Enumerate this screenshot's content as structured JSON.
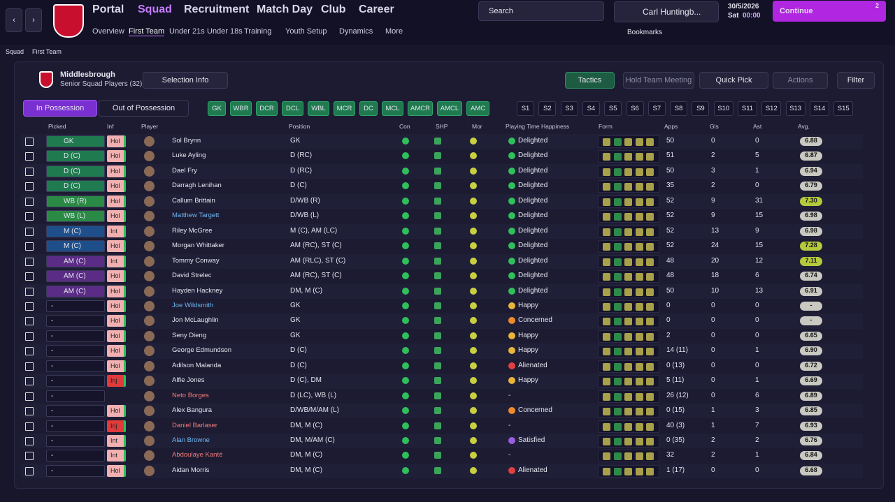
{
  "nav": {
    "main": [
      "Portal",
      "Squad",
      "Recruitment",
      "Match Day",
      "Club",
      "Career"
    ],
    "sub": [
      "Overview",
      "First Team",
      "Under 21s",
      "Under 18s",
      "Training",
      "Youth Setup",
      "Dynamics",
      "More"
    ],
    "search": "Search",
    "manager": "Carl Huntingb...",
    "date": "30/5/2026",
    "day": "Sat",
    "time": "00:00",
    "continue": "Continue",
    "badge": "2",
    "bookmarks": "Bookmarks"
  },
  "breadcrumb": [
    "Squad",
    "First Team"
  ],
  "header": {
    "club": "Middlesbrough",
    "subtitle": "Senior Squad Players (32)",
    "selection_info": "Selection Info",
    "tactics": "Tactics",
    "meeting": "Hold Team Meeting",
    "quick_pick": "Quick Pick",
    "actions": "Actions",
    "filter": "Filter"
  },
  "tabs": [
    "In Possession",
    "Out of Possession"
  ],
  "positions": [
    "GK",
    "WBR",
    "DCR",
    "DCL",
    "WBL",
    "MCR",
    "DC",
    "MCL",
    "AMCR",
    "AMCL",
    "AMC"
  ],
  "slots": [
    "S1",
    "S2",
    "S3",
    "S4",
    "S5",
    "S6",
    "S7",
    "S8",
    "S9",
    "S10",
    "S11",
    "S12",
    "S13",
    "S14",
    "S15"
  ],
  "table": {
    "columns": [
      "Picked",
      "Inf",
      "Player",
      "Position",
      "Con",
      "SHP",
      "Mor",
      "Playing Time Happiness",
      "Form",
      "Apps",
      "Gls",
      "Ast",
      "Avg."
    ],
    "rows": [
      {
        "picked": "GK",
        "picked_color": "#1f7a4f",
        "inf": "Hol",
        "name": "Sol Brynn",
        "position": "GK",
        "happiness": "Delighted",
        "mood_color": "#2fbf5b",
        "apps": "50",
        "gls": "0",
        "ast": "0",
        "avg": "6.88"
      },
      {
        "picked": "D (C)",
        "picked_color": "#1f7a4f",
        "inf": "Hol",
        "name": "Luke Ayling",
        "position": "D (RC)",
        "happiness": "Delighted",
        "mood_color": "#2fbf5b",
        "apps": "51",
        "gls": "2",
        "ast": "5",
        "avg": "6.87"
      },
      {
        "picked": "D (C)",
        "picked_color": "#1f7a4f",
        "inf": "Hol",
        "name": "Dael Fry",
        "position": "D (RC)",
        "happiness": "Delighted",
        "mood_color": "#2fbf5b",
        "apps": "50",
        "gls": "3",
        "ast": "1",
        "avg": "6.94"
      },
      {
        "picked": "D (C)",
        "picked_color": "#1f7a4f",
        "inf": "Hol",
        "name": "Darragh Lenihan",
        "position": "D (C)",
        "happiness": "Delighted",
        "mood_color": "#2fbf5b",
        "apps": "35",
        "gls": "2",
        "ast": "0",
        "avg": "6.79"
      },
      {
        "picked": "WB (R)",
        "picked_color": "#2a8a45",
        "inf": "Hol",
        "name": "Callum Brittain",
        "position": "D/WB (R)",
        "happiness": "Delighted",
        "mood_color": "#2fbf5b",
        "apps": "52",
        "gls": "9",
        "ast": "31",
        "avg": "7.30"
      },
      {
        "picked": "WB (L)",
        "picked_color": "#2a8a45",
        "inf": "Hol",
        "name": "Matthew Targett",
        "name_color": "#6fb6f0",
        "position": "D/WB (L)",
        "happiness": "Delighted",
        "mood_color": "#2fbf5b",
        "apps": "52",
        "gls": "9",
        "ast": "15",
        "avg": "6.98"
      },
      {
        "picked": "M (C)",
        "picked_color": "#1e4f8a",
        "inf": "Int",
        "name": "Riley McGree",
        "position": "M (C), AM (LC)",
        "happiness": "Delighted",
        "mood_color": "#2fbf5b",
        "apps": "52",
        "gls": "13",
        "ast": "9",
        "avg": "6.98"
      },
      {
        "picked": "M (C)",
        "picked_color": "#1e4f8a",
        "inf": "Hol",
        "name": "Morgan Whittaker",
        "position": "AM (RC), ST (C)",
        "happiness": "Delighted",
        "mood_color": "#2fbf5b",
        "apps": "52",
        "gls": "24",
        "ast": "15",
        "avg": "7.28"
      },
      {
        "picked": "AM (C)",
        "picked_color": "#5a2c86",
        "inf": "Int",
        "name": "Tommy Conway",
        "position": "AM (RLC), ST (C)",
        "happiness": "Delighted",
        "mood_color": "#2fbf5b",
        "apps": "48",
        "gls": "20",
        "ast": "12",
        "avg": "7.11"
      },
      {
        "picked": "AM (C)",
        "picked_color": "#5a2c86",
        "inf": "Hol",
        "name": "David Strelec",
        "position": "AM (RC), ST (C)",
        "happiness": "Delighted",
        "mood_color": "#2fbf5b",
        "apps": "48",
        "gls": "18",
        "ast": "6",
        "avg": "6.74"
      },
      {
        "picked": "AM (C)",
        "picked_color": "#5a2c86",
        "inf": "Hol",
        "name": "Hayden Hackney",
        "position": "DM, M (C)",
        "happiness": "Delighted",
        "mood_color": "#2fbf5b",
        "apps": "50",
        "gls": "10",
        "ast": "13",
        "avg": "6.91"
      },
      {
        "picked": "-",
        "inf": "Hol",
        "name": "Joe Wildsmith",
        "name_color": "#6fb6f0",
        "position": "GK",
        "happiness": "Happy",
        "mood_color": "#e8b53a",
        "apps": "0",
        "gls": "0",
        "ast": "0",
        "avg": "-"
      },
      {
        "picked": "-",
        "inf": "Hol",
        "name": "Jon McLaughlin",
        "position": "GK",
        "happiness": "Concerned",
        "mood_color": "#f08a2c",
        "apps": "0",
        "gls": "0",
        "ast": "0",
        "avg": "-"
      },
      {
        "picked": "-",
        "inf": "Hol",
        "name": "Seny Dieng",
        "position": "GK",
        "happiness": "Happy",
        "mood_color": "#e8b53a",
        "apps": "2",
        "gls": "0",
        "ast": "0",
        "avg": "6.65"
      },
      {
        "picked": "-",
        "inf": "Hol",
        "name": "George Edmundson",
        "position": "D (C)",
        "happiness": "Happy",
        "mood_color": "#e8b53a",
        "apps": "14 (11)",
        "gls": "0",
        "ast": "1",
        "avg": "6.90"
      },
      {
        "picked": "-",
        "inf": "Hol",
        "name": "Adilson Malanda",
        "position": "D (C)",
        "happiness": "Alienated",
        "mood_color": "#e04040",
        "apps": "0 (13)",
        "gls": "0",
        "ast": "0",
        "avg": "6.72"
      },
      {
        "picked": "-",
        "inf": "Inj",
        "name": "Alfie Jones",
        "position": "D (C), DM",
        "happiness": "Happy",
        "mood_color": "#e8b53a",
        "apps": "5 (11)",
        "gls": "0",
        "ast": "1",
        "avg": "6.69"
      },
      {
        "picked": "-",
        "name": "Neto Borges",
        "name_color": "#f07a7a",
        "position": "D (LC), WB (L)",
        "happiness": "-",
        "apps": "26 (12)",
        "gls": "0",
        "ast": "6",
        "avg": "6.89"
      },
      {
        "picked": "-",
        "inf": "Hol",
        "name": "Alex Bangura",
        "position": "D/WB/M/AM (L)",
        "happiness": "Concerned",
        "mood_color": "#f08a2c",
        "apps": "0 (15)",
        "gls": "1",
        "ast": "3",
        "avg": "6.85"
      },
      {
        "picked": "-",
        "inf": "Inj",
        "name": "Daniel Barlaser",
        "name_color": "#f07a7a",
        "position": "DM, M (C)",
        "happiness": "-",
        "apps": "40 (3)",
        "gls": "1",
        "ast": "7",
        "avg": "6.93"
      },
      {
        "picked": "-",
        "inf": "Int",
        "name": "Alan Browne",
        "name_color": "#6fb6f0",
        "position": "DM, M/AM (C)",
        "happiness": "Satisfied",
        "mood_color": "#9a5ee0",
        "apps": "0 (35)",
        "gls": "2",
        "ast": "2",
        "avg": "6.76"
      },
      {
        "picked": "-",
        "inf": "Int",
        "name": "Abdoulaye Kanté",
        "name_color": "#f07a7a",
        "position": "DM, M (C)",
        "happiness": "-",
        "apps": "32",
        "gls": "2",
        "ast": "1",
        "avg": "6.84"
      },
      {
        "picked": "-",
        "inf": "Hol",
        "name": "Aidan Morris",
        "position": "DM, M (C)",
        "happiness": "Alienated",
        "mood_color": "#e04040",
        "apps": "1 (17)",
        "gls": "0",
        "ast": "0",
        "avg": "6.68"
      }
    ]
  }
}
